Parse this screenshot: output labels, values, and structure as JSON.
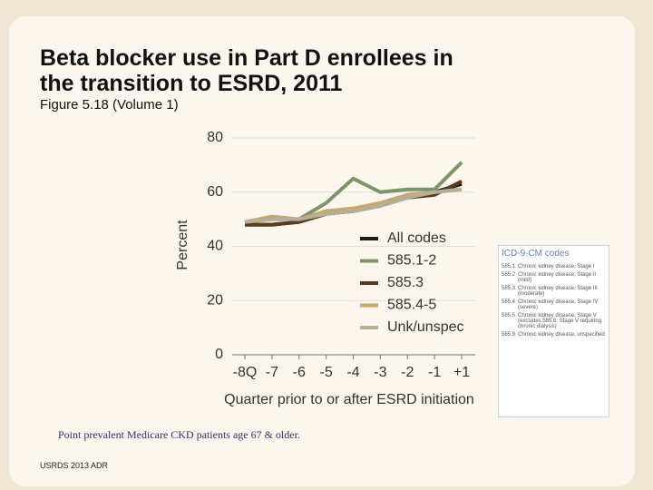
{
  "title": "Beta blocker use in Part D enrollees in the transition to ESRD, 2011",
  "subtitle": "Figure 5.18 (Volume 1)",
  "note": "Point prevalent Medicare CKD patients age 67 & older.",
  "footer": "USRDS 2013 ADR",
  "sidebar": {
    "heading": "ICD-9-CM codes",
    "rows": [
      [
        "585.1",
        "Chronic kidney disease, Stage I"
      ],
      [
        "585.2",
        "Chronic kidney disease, Stage II (mild)"
      ],
      [
        "585.3",
        "Chronic kidney disease, Stage III (moderate)"
      ],
      [
        "585.4",
        "Chronic kidney disease, Stage IV (severe)"
      ],
      [
        "585.5",
        "Chronic kidney disease, Stage V (excludes 585.6: Stage V requiring chronic dialysis)"
      ],
      [
        "585.9",
        "Chronic kidney disease, unspecified"
      ]
    ]
  },
  "chart_data": {
    "type": "line",
    "y_label": "Percent",
    "x_label": "Quarter prior to or after ESRD initiation",
    "categories": [
      "-8Q",
      "-7",
      "-6",
      "-5",
      "-4",
      "-3",
      "-2",
      "-1",
      "+1"
    ],
    "ylim": [
      0,
      80
    ],
    "yticks": [
      0,
      20,
      40,
      60,
      80
    ],
    "grid": true,
    "series": [
      {
        "name": "All codes",
        "color": "#1e1a16",
        "values": [
          48,
          48,
          49,
          52,
          53,
          55,
          58,
          60,
          63
        ]
      },
      {
        "name": "585.1-2",
        "color": "#7b9468",
        "values": [
          49,
          50,
          50,
          56,
          65,
          60,
          61,
          61,
          71
        ]
      },
      {
        "name": "585.3",
        "color": "#5b3a1f",
        "values": [
          48,
          48,
          49,
          52,
          53,
          55,
          58,
          59,
          64
        ]
      },
      {
        "name": "585.4-5",
        "color": "#c9a66b",
        "values": [
          49,
          51,
          50,
          53,
          54,
          56,
          59,
          60,
          61
        ]
      },
      {
        "name": "Unk/unspec",
        "color": "#b5ae98",
        "values": [
          49,
          50,
          50,
          52,
          53,
          55,
          58,
          60,
          61
        ]
      }
    ]
  }
}
